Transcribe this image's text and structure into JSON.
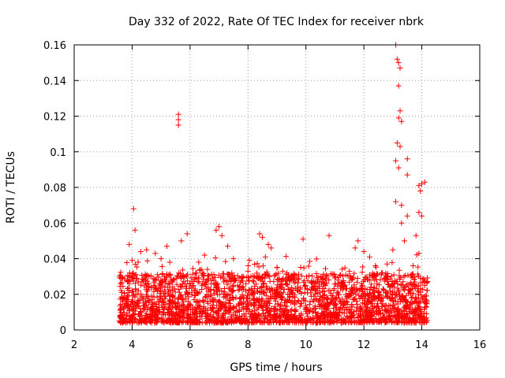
{
  "chart_data": {
    "type": "scatter",
    "title": "Day 332 of 2022, Rate Of TEC Index for receiver nbrk",
    "xlabel": "GPS time / hours",
    "ylabel": "ROTI / TECUs",
    "xlim": [
      2,
      16
    ],
    "ylim": [
      0,
      0.16
    ],
    "xticks": [
      "2",
      "4",
      "6",
      "8",
      "10",
      "12",
      "14",
      "16"
    ],
    "yticks": [
      "0",
      "0.02",
      "0.04",
      "0.06",
      "0.08",
      "0.1",
      "0.12",
      "0.14",
      "0.16"
    ],
    "grid": true,
    "marker": "+",
    "color": "#ff0000",
    "series": [
      {
        "name": "ROTI",
        "points": [
          [
            3.6,
            0.029
          ],
          [
            3.9,
            0.048
          ],
          [
            4.0,
            0.039
          ],
          [
            4.05,
            0.068
          ],
          [
            4.1,
            0.056
          ],
          [
            4.3,
            0.044
          ],
          [
            4.5,
            0.045
          ],
          [
            4.8,
            0.043
          ],
          [
            5.0,
            0.04
          ],
          [
            5.2,
            0.047
          ],
          [
            5.3,
            0.038
          ],
          [
            5.6,
            0.121
          ],
          [
            5.6,
            0.118
          ],
          [
            5.6,
            0.115
          ],
          [
            5.7,
            0.05
          ],
          [
            5.9,
            0.054
          ],
          [
            6.3,
            0.038
          ],
          [
            6.5,
            0.042
          ],
          [
            6.6,
            0.034
          ],
          [
            6.9,
            0.056
          ],
          [
            7.0,
            0.058
          ],
          [
            7.1,
            0.053
          ],
          [
            7.3,
            0.047
          ],
          [
            7.5,
            0.04
          ],
          [
            7.8,
            0.03
          ],
          [
            8.0,
            0.033
          ],
          [
            8.2,
            0.027
          ],
          [
            8.4,
            0.054
          ],
          [
            8.5,
            0.052
          ],
          [
            8.6,
            0.041
          ],
          [
            8.7,
            0.048
          ],
          [
            8.8,
            0.046
          ],
          [
            9.0,
            0.035
          ],
          [
            9.2,
            0.033
          ],
          [
            9.4,
            0.03
          ],
          [
            9.6,
            0.028
          ],
          [
            9.9,
            0.051
          ],
          [
            10.2,
            0.027
          ],
          [
            10.5,
            0.03
          ],
          [
            10.8,
            0.053
          ],
          [
            11.1,
            0.026
          ],
          [
            11.3,
            0.024
          ],
          [
            11.5,
            0.033
          ],
          [
            11.7,
            0.046
          ],
          [
            11.8,
            0.05
          ],
          [
            12.0,
            0.044
          ],
          [
            12.2,
            0.041
          ],
          [
            12.4,
            0.036
          ],
          [
            12.6,
            0.031
          ],
          [
            12.8,
            0.037
          ],
          [
            13.0,
            0.045
          ],
          [
            13.1,
            0.16
          ],
          [
            13.15,
            0.152
          ],
          [
            13.2,
            0.15
          ],
          [
            13.25,
            0.147
          ],
          [
            13.2,
            0.137
          ],
          [
            13.25,
            0.123
          ],
          [
            13.2,
            0.119
          ],
          [
            13.3,
            0.117
          ],
          [
            13.15,
            0.105
          ],
          [
            13.25,
            0.103
          ],
          [
            13.1,
            0.095
          ],
          [
            13.2,
            0.091
          ],
          [
            13.1,
            0.072
          ],
          [
            13.3,
            0.07
          ],
          [
            13.3,
            0.06
          ],
          [
            13.5,
            0.096
          ],
          [
            13.5,
            0.087
          ],
          [
            13.5,
            0.064
          ],
          [
            13.4,
            0.05
          ],
          [
            13.9,
            0.081
          ],
          [
            14.0,
            0.082
          ],
          [
            14.1,
            0.083
          ],
          [
            13.95,
            0.078
          ],
          [
            13.9,
            0.066
          ],
          [
            14.0,
            0.064
          ],
          [
            13.8,
            0.053
          ],
          [
            13.9,
            0.043
          ],
          [
            13.7,
            0.036
          ],
          [
            14.1,
            0.025
          ]
        ]
      }
    ],
    "dense_band": {
      "x_range": [
        3.55,
        14.2
      ],
      "y_floor": 0.004,
      "y_typical": [
        0.005,
        0.025
      ]
    }
  }
}
